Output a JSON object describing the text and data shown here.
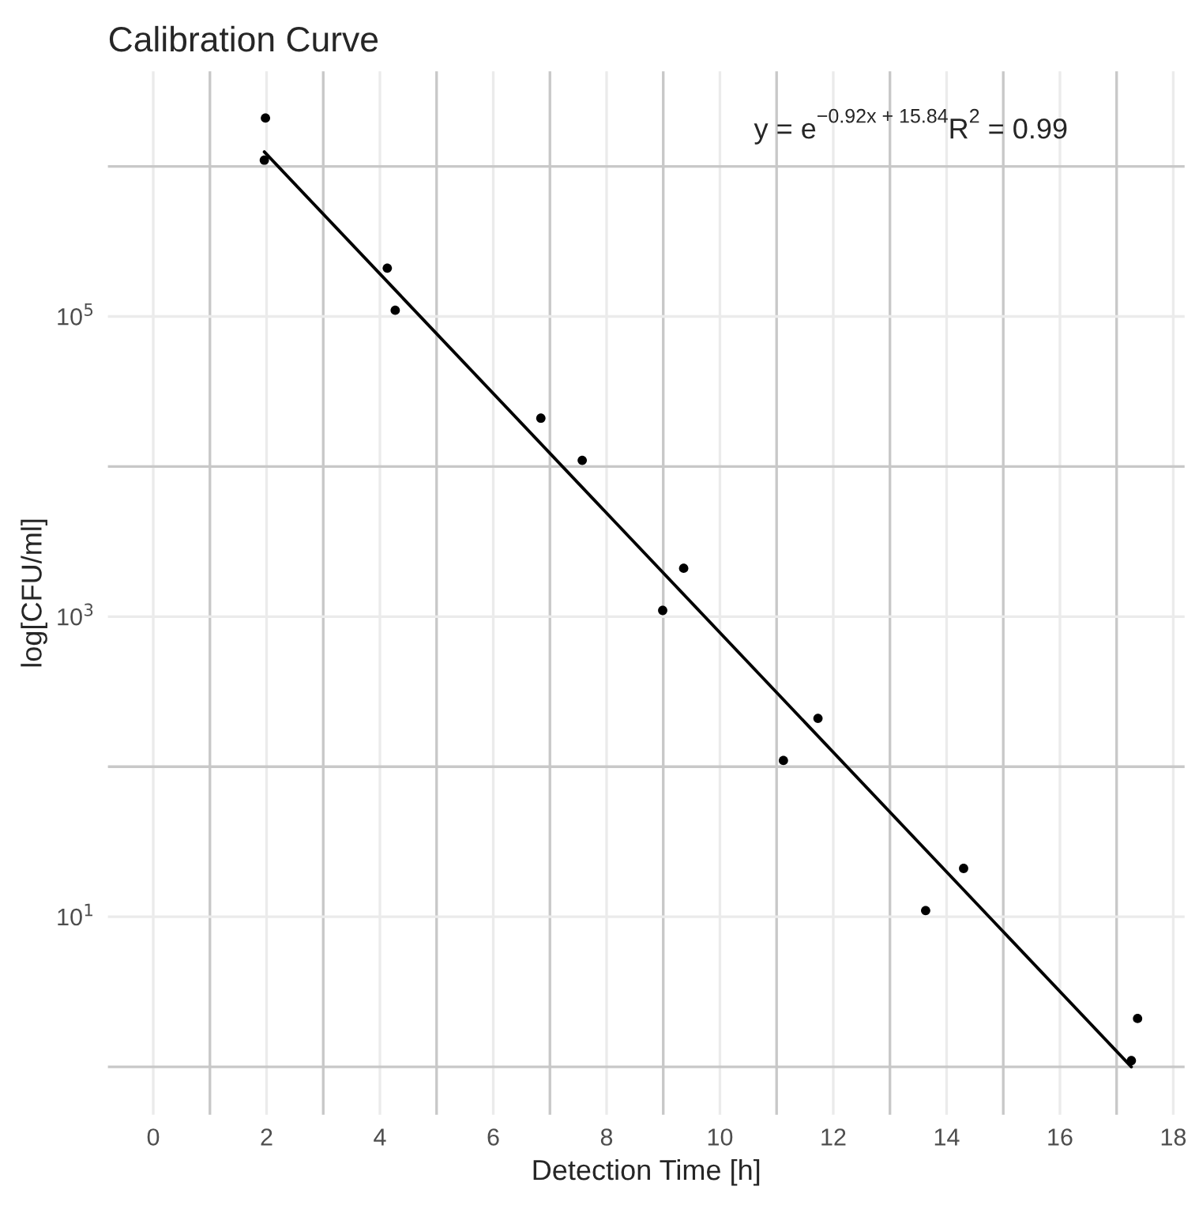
{
  "chart_data": {
    "type": "scatter",
    "title": "Calibration Curve",
    "xlabel": "Detection Time [h]",
    "ylabel": "log[CFU/ml]",
    "annotations": [
      "y = e$^{−0.92x + 15.84}$R$^{2}$ = 0.99"
    ],
    "series": [
      {
        "color": "#000000",
        "marker": "circle",
        "x": [
          1.98,
          1.96,
          4.13,
          4.27,
          6.84,
          7.57,
          8.99,
          9.36,
          11.12,
          11.73,
          13.63,
          14.3,
          17.26,
          17.37
        ],
        "values": [
          2100000,
          1100000,
          210000,
          110000,
          21000,
          11000,
          1100,
          2100,
          110,
          210,
          11,
          21,
          1.1,
          2.1
        ]
      },
      {
        "type": "line",
        "color": "#000000",
        "line_style": "solid",
        "x": [
          1.96,
          17.26
        ],
        "values": [
          1250000,
          1.0
        ]
      }
    ],
    "log": "y",
    "grid": true,
    "xlim": [
      -0.8,
      18.2
    ],
    "xticks": [
      0,
      {
        "value": 1,
        "label": null
      },
      2,
      {
        "value": 3,
        "label": null
      },
      4,
      {
        "value": 5,
        "label": null
      },
      6,
      {
        "value": 7,
        "label": null
      },
      8,
      {
        "value": 9,
        "label": null
      },
      10,
      {
        "value": 11,
        "label": null
      },
      12,
      {
        "value": 13,
        "label": null
      },
      14,
      {
        "value": 15,
        "label": null
      },
      16,
      {
        "value": 17,
        "label": null
      },
      18
    ],
    "ylim": [
      0.48,
      4300000
    ],
    "yticks": [
      {
        "value": 1,
        "label": null
      },
      {
        "value": 10,
        "label": "10$^{1}$"
      },
      {
        "value": 100,
        "label": null
      },
      {
        "value": 1000,
        "label": "10$^{3}$"
      },
      {
        "value": 10000,
        "label": null
      },
      {
        "value": 100000,
        "label": "10$^{5}$"
      },
      {
        "value": 1000000,
        "label": null
      }
    ]
  }
}
